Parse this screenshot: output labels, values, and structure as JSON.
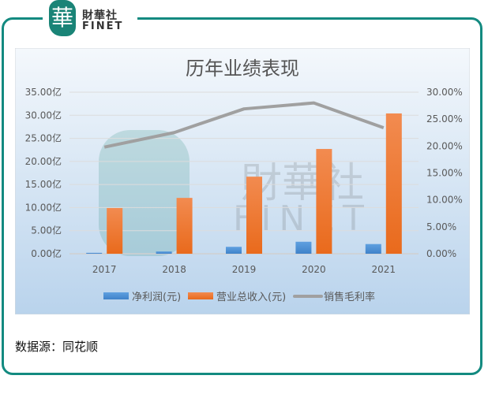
{
  "logo": {
    "mark": "華",
    "cn": "財華社",
    "en": "FINET"
  },
  "footer": {
    "source": "数据源：同花顺"
  },
  "colors": {
    "frame": "#138a80",
    "net_profit": "#4a8fd6",
    "revenue": "#f07a2a",
    "gross_margin": "#a0a0a0"
  },
  "chart_data": {
    "type": "bar",
    "title": "历年业绩表现",
    "categories": [
      "2017",
      "2018",
      "2019",
      "2020",
      "2021"
    ],
    "y_left": {
      "ylim": [
        0,
        35
      ],
      "ticks": [
        "0.00亿",
        "5.00亿",
        "10.00亿",
        "15.00亿",
        "20.00亿",
        "25.00亿",
        "30.00亿",
        "35.00亿"
      ]
    },
    "y_right": {
      "ylim": [
        0,
        30
      ],
      "ticks": [
        "0.00%",
        "5.00%",
        "10.00%",
        "15.00%",
        "20.00%",
        "25.00%",
        "30.00%"
      ]
    },
    "series": [
      {
        "name": "净利润(元)",
        "type": "bar",
        "axis": "left",
        "unit": "亿",
        "values": [
          0.2,
          0.5,
          1.5,
          2.6,
          2.1
        ]
      },
      {
        "name": "营业总收入(元)",
        "type": "bar",
        "axis": "left",
        "unit": "亿",
        "values": [
          9.9,
          12.1,
          16.7,
          22.7,
          30.4
        ]
      },
      {
        "name": "销售毛利率",
        "type": "line",
        "axis": "right",
        "unit": "%",
        "values": [
          19.8,
          22.5,
          26.9,
          28.0,
          23.4
        ]
      }
    ],
    "grid": true,
    "legend": "bottom"
  }
}
